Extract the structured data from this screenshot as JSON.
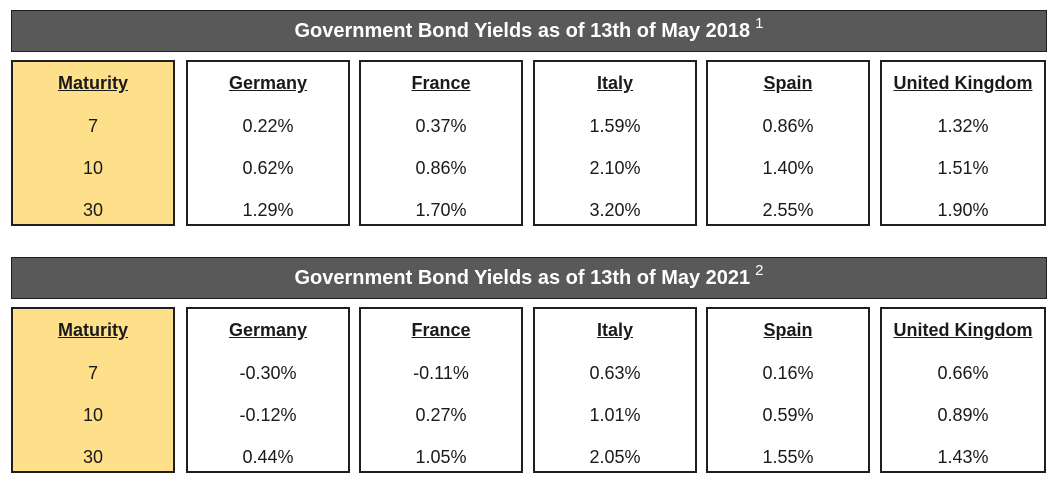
{
  "tables": [
    {
      "title": "Government Bond Yields as of 13th of May 2018",
      "footnote": "1",
      "headers": [
        "Maturity",
        "Germany",
        "France",
        "Italy",
        "Spain",
        "United Kingdom"
      ],
      "columns": [
        [
          "7",
          "10",
          "30"
        ],
        [
          "0.22%",
          "0.62%",
          "1.29%"
        ],
        [
          "0.37%",
          "0.86%",
          "1.70%"
        ],
        [
          "1.59%",
          "2.10%",
          "3.20%"
        ],
        [
          "0.86%",
          "1.40%",
          "2.55%"
        ],
        [
          "1.32%",
          "1.51%",
          "1.90%"
        ]
      ]
    },
    {
      "title": "Government Bond Yields as of 13th of May 2021",
      "footnote": "2",
      "headers": [
        "Maturity",
        "Germany",
        "France",
        "Italy",
        "Spain",
        "United Kingdom"
      ],
      "columns": [
        [
          "7",
          "10",
          "30"
        ],
        [
          "-0.30%",
          "-0.12%",
          "0.44%"
        ],
        [
          "-0.11%",
          "0.27%",
          "1.05%"
        ],
        [
          "0.63%",
          "1.01%",
          "2.05%"
        ],
        [
          "0.16%",
          "0.59%",
          "1.55%"
        ],
        [
          "0.66%",
          "0.89%",
          "1.43%"
        ]
      ]
    }
  ],
  "colors": {
    "title_bar_bg": "#595959",
    "title_text": "#ffffff",
    "maturity_column_bg": "#ffe08a",
    "border": "#1f1f1f"
  }
}
